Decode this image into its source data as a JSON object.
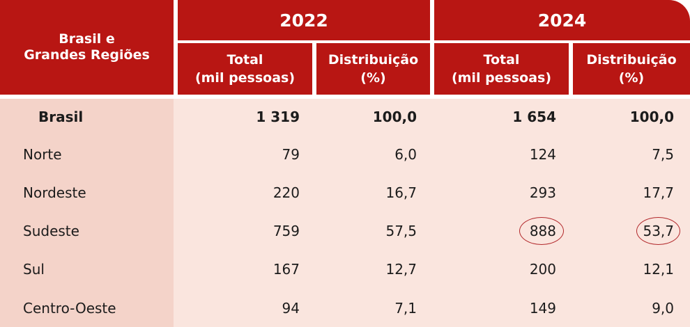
{
  "table": {
    "corner_header": [
      "Brasil e",
      "Grandes Regiões"
    ],
    "years": [
      "2022",
      "2024"
    ],
    "sub_headers": [
      [
        "Total",
        "(mil pessoas)"
      ],
      [
        "Distribuição",
        "(%)"
      ],
      [
        "Total",
        "(mil pessoas)"
      ],
      [
        "Distribuição",
        "(%)"
      ]
    ],
    "rows": [
      {
        "region": "Brasil",
        "total_2022": "1 319",
        "dist_2022": "100,0",
        "total_2024": "1 654",
        "dist_2024": "100,0",
        "bold": true
      },
      {
        "region": "Norte",
        "total_2022": "79",
        "dist_2022": "6,0",
        "total_2024": "124",
        "dist_2024": "7,5"
      },
      {
        "region": "Nordeste",
        "total_2022": "220",
        "dist_2022": "16,7",
        "total_2024": "293",
        "dist_2024": "17,7"
      },
      {
        "region": "Sudeste",
        "total_2022": "759",
        "dist_2022": "57,5",
        "total_2024": "888",
        "dist_2024": "53,7",
        "highlighted_2024": true
      },
      {
        "region": "Sul",
        "total_2022": "167",
        "dist_2022": "12,7",
        "total_2024": "200",
        "dist_2024": "12,1"
      },
      {
        "region": "Centro-Oeste",
        "total_2022": "94",
        "dist_2022": "7,1",
        "total_2024": "149",
        "dist_2024": "9,0"
      }
    ]
  },
  "colors": {
    "header_red": "#b81613",
    "body_left": "#f4d3c9",
    "body_right": "#fae5de",
    "highlight_circle": "#b2282b"
  },
  "chart_data": {
    "type": "table",
    "columns": [
      "Brasil e Grandes Regiões",
      "2022 Total (mil pessoas)",
      "2022 Distribuição (%)",
      "2024 Total (mil pessoas)",
      "2024 Distribuição (%)"
    ],
    "rows": [
      [
        "Brasil",
        1319,
        100.0,
        1654,
        100.0
      ],
      [
        "Norte",
        79,
        6.0,
        124,
        7.5
      ],
      [
        "Nordeste",
        220,
        16.7,
        293,
        17.7
      ],
      [
        "Sudeste",
        759,
        57.5,
        888,
        53.7
      ],
      [
        "Sul",
        167,
        12.7,
        200,
        12.1
      ],
      [
        "Centro-Oeste",
        94,
        7.1,
        149,
        9.0
      ]
    ]
  }
}
